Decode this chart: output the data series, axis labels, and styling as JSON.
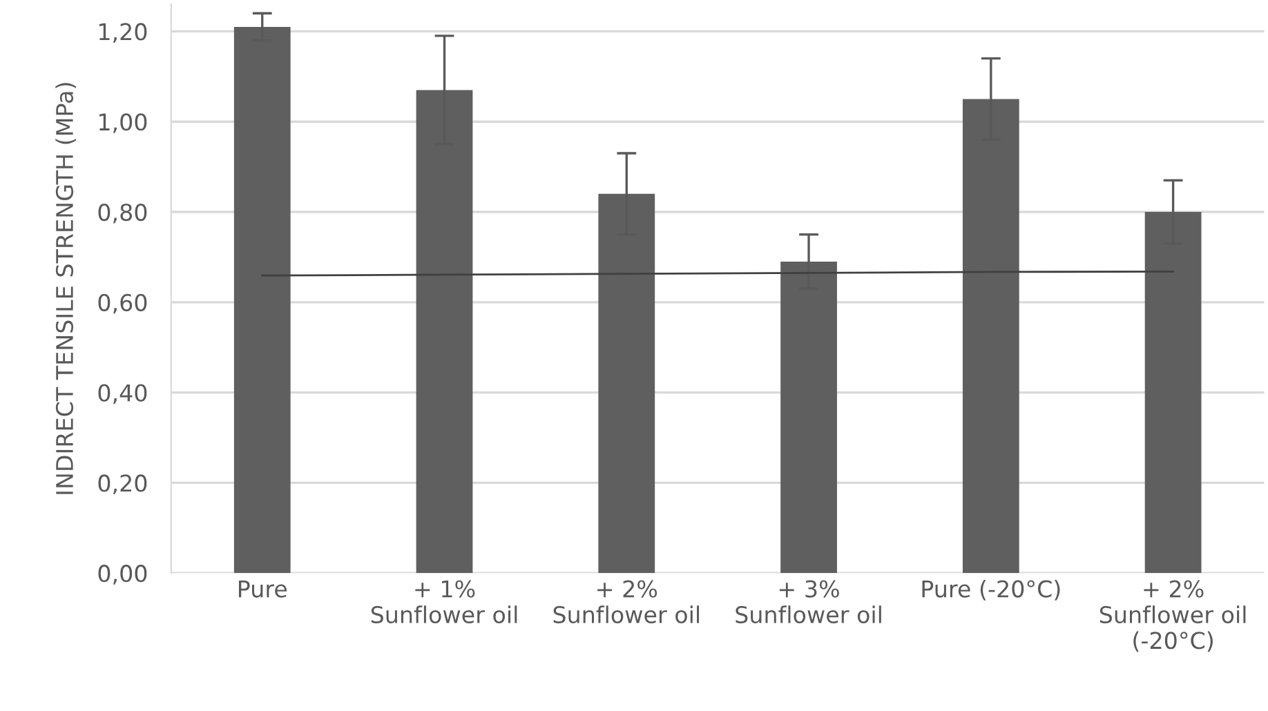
{
  "chart_data": {
    "type": "bar",
    "ylabel": "INDIRECT TENSILE STRENGTH (MPa)",
    "categories": [
      "Pure",
      "+ 1%\nSunflower oil",
      "+ 2%\nSunflower oil",
      "+ 3%\nSunflower oil",
      "Pure (-20°C)",
      "+ 2%\nSunflower oil\n(-20°C)"
    ],
    "series": [
      {
        "color": "#5f5f5f",
        "values": [
          1.21,
          1.07,
          0.84,
          0.69,
          1.05,
          0.8
        ],
        "errors": [
          0.03,
          0.12,
          0.09,
          0.06,
          0.09,
          0.07
        ]
      },
      {
        "type": "line",
        "color": "#404040",
        "values": [
          0.659,
          0.661,
          0.663,
          0.665,
          0.667,
          0.668
        ]
      }
    ],
    "ylim": [
      0,
      1.26
    ],
    "yticks": [
      {
        "value": 0,
        "label": "0,00"
      },
      {
        "value": 0.2,
        "label": "0,20"
      },
      {
        "value": 0.4,
        "label": "0,40"
      },
      {
        "value": 0.6,
        "label": "0,60"
      },
      {
        "value": 0.8,
        "label": "0,80"
      },
      {
        "value": 1.0,
        "label": "1,00"
      },
      {
        "value": 1.2,
        "label": "1,20"
      }
    ],
    "grid": "y",
    "legend": false
  }
}
